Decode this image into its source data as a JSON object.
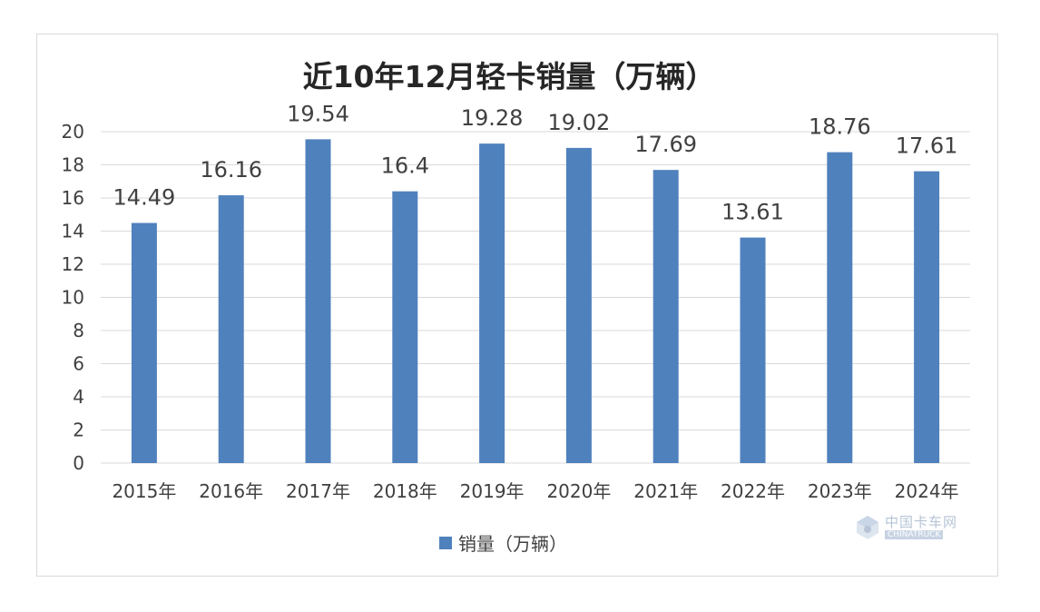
{
  "chart_data": {
    "type": "bar",
    "title": "近10年12月轻卡销量（万辆）",
    "categories": [
      "2015年",
      "2016年",
      "2017年",
      "2018年",
      "2019年",
      "2020年",
      "2021年",
      "2022年",
      "2023年",
      "2024年"
    ],
    "series": [
      {
        "name": "销量（万辆）",
        "values": [
          14.49,
          16.16,
          19.54,
          16.4,
          19.28,
          19.02,
          17.69,
          13.61,
          18.76,
          17.61
        ],
        "data_labels": [
          "14.49",
          "16.16",
          "19.54",
          "16.4",
          "19.28",
          "19.02",
          "17.69",
          "13.61",
          "18.76",
          "17.61"
        ]
      }
    ],
    "y_ticks": [
      "0",
      "2",
      "4",
      "6",
      "8",
      "10",
      "12",
      "14",
      "16",
      "18",
      "20"
    ],
    "ylim": [
      0,
      20
    ],
    "grid": true,
    "legend_position": "bottom",
    "xlabel": "",
    "ylabel": ""
  },
  "colors": {
    "bar": "#4f81bd",
    "grid": "#d9d9d9",
    "text": "#404040"
  },
  "watermark": {
    "name": "中国卡车网",
    "sub": "CHINATRUCK"
  }
}
